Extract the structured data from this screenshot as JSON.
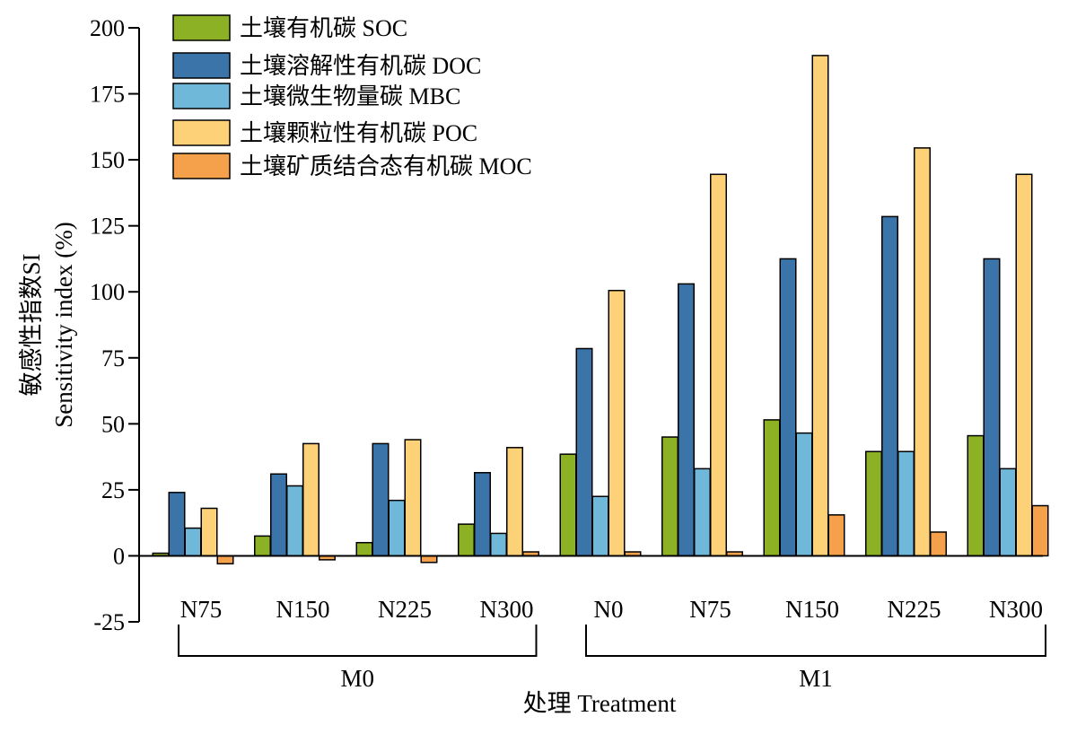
{
  "chart_data": {
    "type": "bar",
    "xlabel": "处理 Treatment",
    "ylabel_lines": [
      "敏感性指数SI",
      "Sensitivity index (%)"
    ],
    "ylim": [
      -25,
      200
    ],
    "yticks": [
      -25,
      0,
      25,
      50,
      75,
      100,
      125,
      150,
      175,
      200
    ],
    "categories": [
      "N75",
      "N150",
      "N225",
      "N300",
      "N0",
      "N75",
      "N150",
      "N225",
      "N300"
    ],
    "groups": [
      {
        "label": "M0",
        "categories": [
          0,
          3
        ]
      },
      {
        "label": "M1",
        "categories": [
          4,
          8
        ]
      }
    ],
    "legend_position": "top-left",
    "series": [
      {
        "name": "土壤有机碳 SOC",
        "color": "#8db125",
        "values": [
          1,
          7.5,
          5,
          12,
          38.5,
          45,
          51.5,
          39.5,
          45.5
        ]
      },
      {
        "name": "土壤溶解性有机碳 DOC",
        "color": "#3a74a8",
        "values": [
          24,
          31,
          42.5,
          31.5,
          78.5,
          103,
          112.5,
          128.5,
          112.5
        ]
      },
      {
        "name": "土壤微生物量碳 MBC",
        "color": "#6fb8d9",
        "values": [
          10.5,
          26.5,
          21,
          8.5,
          22.5,
          33,
          46.5,
          39.5,
          33
        ]
      },
      {
        "name": "土壤颗粒性有机碳 POC",
        "color": "#fdd178",
        "values": [
          18,
          42.5,
          44,
          41,
          100.5,
          144.5,
          189.5,
          154.5,
          144.5
        ]
      },
      {
        "name": "土壤矿质结合态有机碳 MOC",
        "color": "#f5a04b",
        "values": [
          -3,
          -1.5,
          -2.5,
          1.5,
          1.5,
          1.5,
          15.5,
          9,
          19
        ]
      }
    ]
  }
}
